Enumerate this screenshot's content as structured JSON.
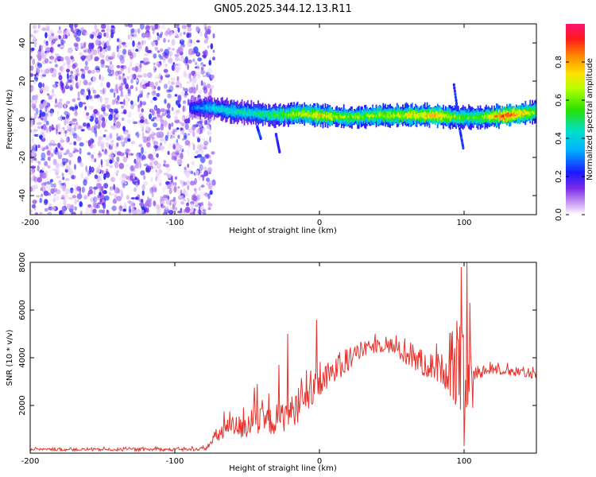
{
  "title": "GN05.2025.344.12.13.R11",
  "chart_data": [
    {
      "type": "heatmap",
      "xlabel": "Height of straight line (km)",
      "ylabel": "Frequency (Hz)",
      "xlim": [
        -200,
        150
      ],
      "ylim": [
        -50,
        50
      ],
      "x_ticks": [
        -200,
        -100,
        0,
        100
      ],
      "y_ticks": [
        -40,
        -20,
        0,
        20,
        40
      ],
      "x_tick_labels": [
        "-200",
        "-100",
        "0",
        "100"
      ],
      "y_tick_labels": [
        "-40",
        "-20",
        "0",
        "20",
        "40"
      ],
      "colorbar": {
        "label": "Normalized spectral amplitude",
        "range": [
          0,
          1
        ],
        "ticks": [
          0.0,
          0.2,
          0.4,
          0.6,
          0.8
        ],
        "tick_labels": [
          "0.0",
          "0.2",
          "0.4",
          "0.6",
          "0.8"
        ]
      },
      "noise_region_x": [
        -200,
        -77
      ],
      "band": {
        "x": [
          -90,
          -75,
          -60,
          -45,
          -30,
          -15,
          0,
          20,
          40,
          60,
          80,
          95,
          100,
          110,
          130,
          150
        ],
        "freq": [
          6,
          6,
          4,
          3,
          2,
          3,
          2,
          1,
          2,
          2,
          2,
          1,
          1,
          1,
          2,
          4
        ],
        "amplitude": [
          0.25,
          0.4,
          0.45,
          0.45,
          0.55,
          0.65,
          0.75,
          0.6,
          0.65,
          0.7,
          0.8,
          0.6,
          0.55,
          0.6,
          0.95,
          0.6
        ]
      }
    },
    {
      "type": "line",
      "xlabel": "Height of straight line (km)",
      "ylabel": "SNR (10 * v/v)",
      "xlim": [
        -200,
        150
      ],
      "ylim": [
        0,
        8000
      ],
      "x_ticks": [
        -200,
        -100,
        0,
        100
      ],
      "y_ticks": [
        2000,
        4000,
        6000,
        8000
      ],
      "x_tick_labels": [
        "-200",
        "-100",
        "0",
        "100"
      ],
      "y_tick_labels": [
        "2000",
        "4000",
        "6000",
        "8000"
      ],
      "color": "#e8322c",
      "envelope": {
        "x": [
          -200,
          -150,
          -90,
          -78,
          -70,
          -60,
          -50,
          -40,
          -30,
          -20,
          -10,
          0,
          10,
          20,
          30,
          40,
          50,
          60,
          70,
          80,
          88,
          95,
          100,
          105,
          110,
          120,
          130,
          140,
          150
        ],
        "y": [
          150,
          150,
          150,
          200,
          800,
          1100,
          1100,
          1300,
          1400,
          1700,
          2200,
          2900,
          3400,
          3900,
          4300,
          4550,
          4500,
          4100,
          3800,
          3600,
          3500,
          3300,
          3000,
          3300,
          3400,
          3500,
          3450,
          3350,
          3300
        ]
      },
      "noise": {
        "x": [
          -200,
          -78,
          -70,
          -50,
          -30,
          -10,
          10,
          30,
          50,
          70,
          85,
          95,
          100,
          105,
          115,
          150
        ],
        "amp": [
          50,
          70,
          400,
          550,
          650,
          700,
          600,
          300,
          350,
          550,
          650,
          1500,
          2000,
          400,
          200,
          180
        ]
      },
      "spikes": [
        {
          "x": -66,
          "y": 1750
        },
        {
          "x": -45,
          "y": 2750
        },
        {
          "x": -43,
          "y": 2900
        },
        {
          "x": -35,
          "y": 2500
        },
        {
          "x": -28,
          "y": 3700
        },
        {
          "x": -22,
          "y": 5000
        },
        {
          "x": -2,
          "y": 5600
        },
        {
          "x": 26,
          "y": 4500
        },
        {
          "x": 66,
          "y": 4200
        },
        {
          "x": 92,
          "y": 5100
        },
        {
          "x": 98,
          "y": 7800
        },
        {
          "x": 100,
          "y": 300
        },
        {
          "x": 102,
          "y": 8000
        },
        {
          "x": 104,
          "y": 6300
        },
        {
          "x": 106,
          "y": 1900
        }
      ]
    }
  ]
}
